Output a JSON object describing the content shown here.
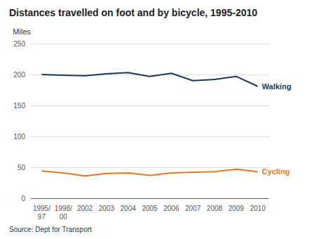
{
  "chart_data": {
    "type": "line",
    "title": "Distances travelled on foot and by bicycle, 1995-2010",
    "y_label": "Miles",
    "annotations": [
      "Source: Dept for Transport"
    ],
    "categories": [
      "1995/\n97",
      "1998/\n00",
      "2002",
      "2003",
      "2004",
      "2005",
      "2006",
      "2007",
      "2008",
      "2009",
      "2010"
    ],
    "series": [
      {
        "name": "Walking",
        "color": "#1a3a5c",
        "values": [
          200,
          199,
          198,
          201,
          203,
          197,
          202,
          190,
          192,
          197,
          181
        ]
      },
      {
        "name": "Cycling",
        "color": "#e87722",
        "values": [
          44,
          41,
          36,
          40,
          41,
          37,
          41,
          42,
          43,
          47,
          43
        ]
      }
    ],
    "ylim": [
      0,
      250
    ],
    "yticks": [
      0,
      50,
      100,
      150,
      200,
      250
    ],
    "grid": true
  }
}
